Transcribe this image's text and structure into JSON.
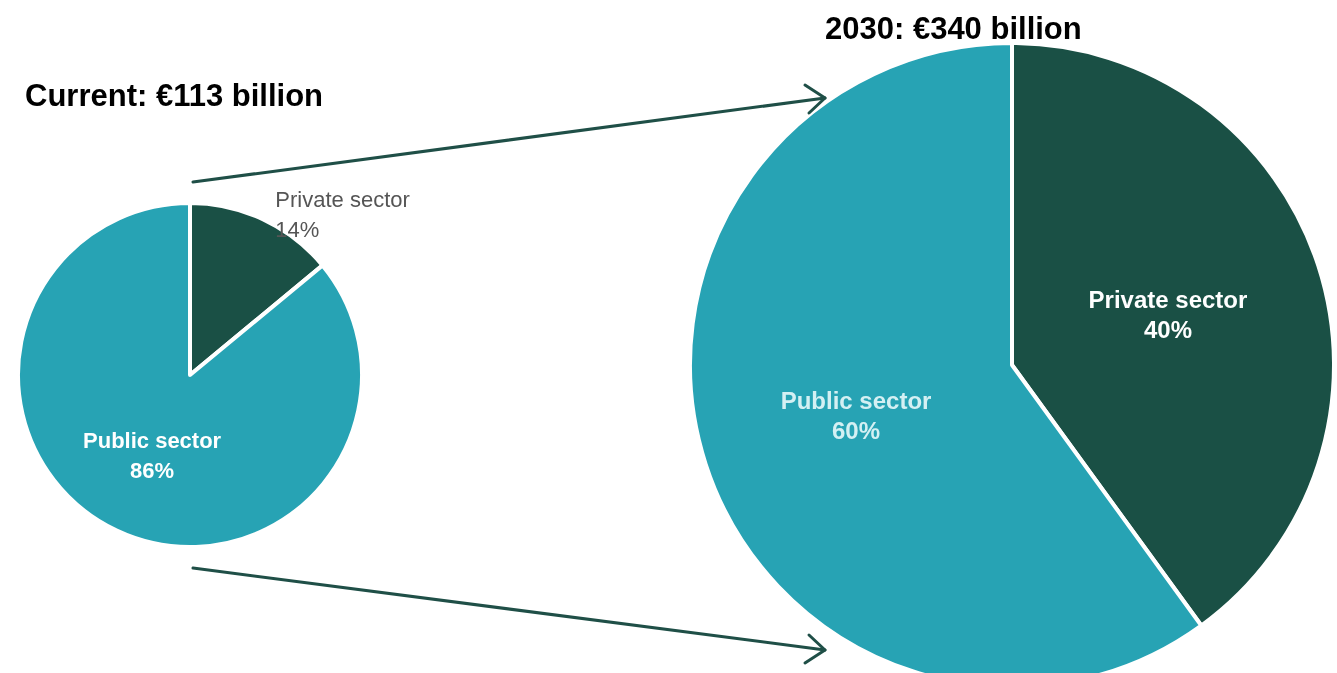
{
  "chart_data": [
    {
      "type": "pie",
      "title": "Current: €113 billion",
      "categories": [
        "Private sector",
        "Public sector"
      ],
      "values": [
        14,
        86
      ],
      "colors": [
        "#1a5045",
        "#27a3b4"
      ],
      "value_labels": [
        "14%",
        "86%"
      ]
    },
    {
      "type": "pie",
      "title": "2030: €340 billion",
      "categories": [
        "Private sector",
        "Public sector"
      ],
      "values": [
        40,
        60
      ],
      "colors": [
        "#1a5045",
        "#27a3b4"
      ],
      "value_labels": [
        "40%",
        "60%"
      ]
    }
  ]
}
